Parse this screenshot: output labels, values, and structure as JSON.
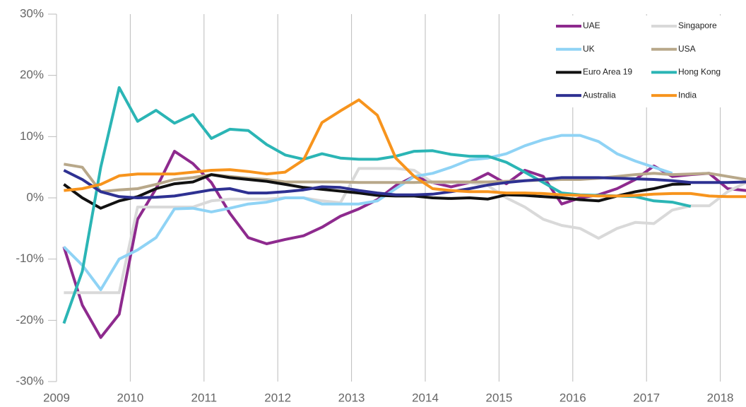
{
  "chart_data": {
    "type": "line",
    "x": [
      2009.1,
      2009.35,
      2009.6,
      2009.85,
      2010.1,
      2010.35,
      2010.6,
      2010.85,
      2011.1,
      2011.35,
      2011.6,
      2011.85,
      2012.1,
      2012.35,
      2012.6,
      2012.85,
      2013.1,
      2013.35,
      2013.6,
      2013.85,
      2014.1,
      2014.35,
      2014.6,
      2014.85,
      2015.1,
      2015.35,
      2015.6,
      2015.85,
      2016.1,
      2016.35,
      2016.6,
      2016.85,
      2017.1,
      2017.35,
      2017.6,
      2017.85,
      2018.1,
      2018.35
    ],
    "series": [
      {
        "name": "UAE",
        "color": "#8e2a8e",
        "values": [
          -8,
          -17.5,
          -22.8,
          -19,
          -3.5,
          1.5,
          7.6,
          5.6,
          2.5,
          -2.5,
          -6.5,
          -7.5,
          -6.8,
          -6.2,
          -4.8,
          -3,
          -1.8,
          -0.3,
          2,
          3.5,
          2.5,
          1.8,
          2.5,
          4,
          2.3,
          4.5,
          3.5,
          -1,
          0,
          0.5,
          1.5,
          3,
          5.2,
          3.5,
          3.8,
          4,
          1.5,
          1.2
        ]
      },
      {
        "name": "Singapore",
        "color": "#d9d9d9",
        "values": [
          -15.5,
          -15.5,
          -15.5,
          -15.5,
          -1.5,
          -1.5,
          -1.5,
          -1.5,
          -0.5,
          -0.2,
          -0.2,
          -0.2,
          0,
          0,
          -0.5,
          -0.8,
          4.8,
          4.8,
          4.8,
          4.5,
          2.5,
          2.5,
          2.5,
          2,
          0,
          -1.5,
          -3.5,
          -4.5,
          -5,
          -6.6,
          -5,
          -4,
          -4.2,
          -2,
          -1.3,
          -1.3,
          1,
          2.5
        ]
      },
      {
        "name": "UK",
        "color": "#8fd3f5",
        "values": [
          -8,
          -11,
          -15,
          -10,
          -8.5,
          -6.5,
          -1.8,
          -1.7,
          -2.3,
          -1.7,
          -1,
          -0.7,
          0,
          0,
          -1,
          -1,
          -1,
          -0.5,
          1.5,
          3.5,
          4,
          5,
          6.2,
          6.5,
          7.2,
          8.5,
          9.5,
          10.2,
          10.2,
          9.2,
          7.2,
          6,
          5,
          4,
          null,
          null,
          null,
          null
        ]
      },
      {
        "name": "USA",
        "color": "#b8a88a",
        "values": [
          5.5,
          5,
          1,
          1.3,
          1.5,
          2.2,
          3,
          3.3,
          3.8,
          3.5,
          3.2,
          3,
          2.6,
          2.6,
          2.6,
          2.6,
          2.5,
          2.5,
          2.5,
          2.5,
          2.6,
          2.6,
          2.6,
          2.6,
          2.7,
          2.8,
          2.9,
          3,
          3,
          3.2,
          3.5,
          3.8,
          4,
          3.8,
          3.9,
          4,
          3.5,
          3
        ]
      },
      {
        "name": "Euro Area 19",
        "color": "#111111",
        "values": [
          2.2,
          0,
          -1.7,
          -0.5,
          0.2,
          1.5,
          2.3,
          2.6,
          3.8,
          3.3,
          3,
          2.7,
          2.2,
          1.7,
          1.4,
          1.1,
          0.8,
          0.4,
          0.3,
          0.3,
          0,
          -0.1,
          0,
          -0.2,
          0.5,
          0.4,
          0.2,
          0,
          -0.3,
          -0.5,
          0.3,
          1,
          1.5,
          2.2,
          2.3,
          null,
          null,
          null
        ]
      },
      {
        "name": "Hong Kong",
        "color": "#2bb5b5",
        "values": [
          -20.5,
          -12,
          5,
          18,
          12.5,
          14.3,
          12.2,
          13.6,
          9.7,
          11.2,
          11,
          8.7,
          7,
          6.3,
          7.2,
          6.5,
          6.3,
          6.3,
          6.8,
          7.6,
          7.7,
          7.1,
          6.8,
          6.8,
          5.8,
          4.2,
          2.5,
          0.8,
          0.5,
          0.4,
          0.3,
          0.2,
          -0.5,
          -0.7,
          -1.4,
          null,
          null,
          null
        ]
      },
      {
        "name": "Australia",
        "color": "#2e3192",
        "values": [
          4.5,
          3,
          1,
          0.2,
          0,
          0.1,
          0.3,
          0.8,
          1.3,
          1.5,
          0.8,
          0.8,
          1,
          1.3,
          1.8,
          1.7,
          1.2,
          0.8,
          0.5,
          0.5,
          0.6,
          1,
          1.5,
          2.1,
          2.5,
          2.8,
          3,
          3.3,
          3.3,
          3.3,
          3.2,
          3.1,
          3,
          2.8,
          2.5,
          2.5,
          2.5,
          2.6
        ]
      },
      {
        "name": "India",
        "color": "#f7941d",
        "values": [
          1.2,
          1.5,
          2.2,
          3.6,
          3.9,
          3.9,
          3.9,
          4.2,
          4.5,
          4.6,
          4.3,
          3.9,
          4.2,
          6.2,
          12.3,
          14.2,
          16,
          13.5,
          6.5,
          3.5,
          1.5,
          1.2,
          1,
          1,
          0.8,
          0.8,
          0.7,
          0.5,
          0.4,
          0.3,
          0.3,
          0.4,
          0.6,
          0.7,
          0.7,
          0.3,
          0.2,
          0.2
        ]
      }
    ],
    "xlim": [
      2009,
      2018.35
    ],
    "xticks": [
      2009,
      2010,
      2011,
      2012,
      2013,
      2014,
      2015,
      2016,
      2017,
      2018
    ],
    "ylim": [
      -30,
      30
    ],
    "yticks": [
      {
        "value": -30,
        "label": "-30%"
      },
      {
        "value": -20,
        "label": "-20%"
      },
      {
        "value": -10,
        "label": "-10%"
      },
      {
        "value": 0,
        "label": "0%"
      },
      {
        "value": 10,
        "label": "10%"
      },
      {
        "value": 20,
        "label": "20%"
      },
      {
        "value": 30,
        "label": "30%"
      }
    ],
    "grid": true,
    "legend": "upper right"
  }
}
